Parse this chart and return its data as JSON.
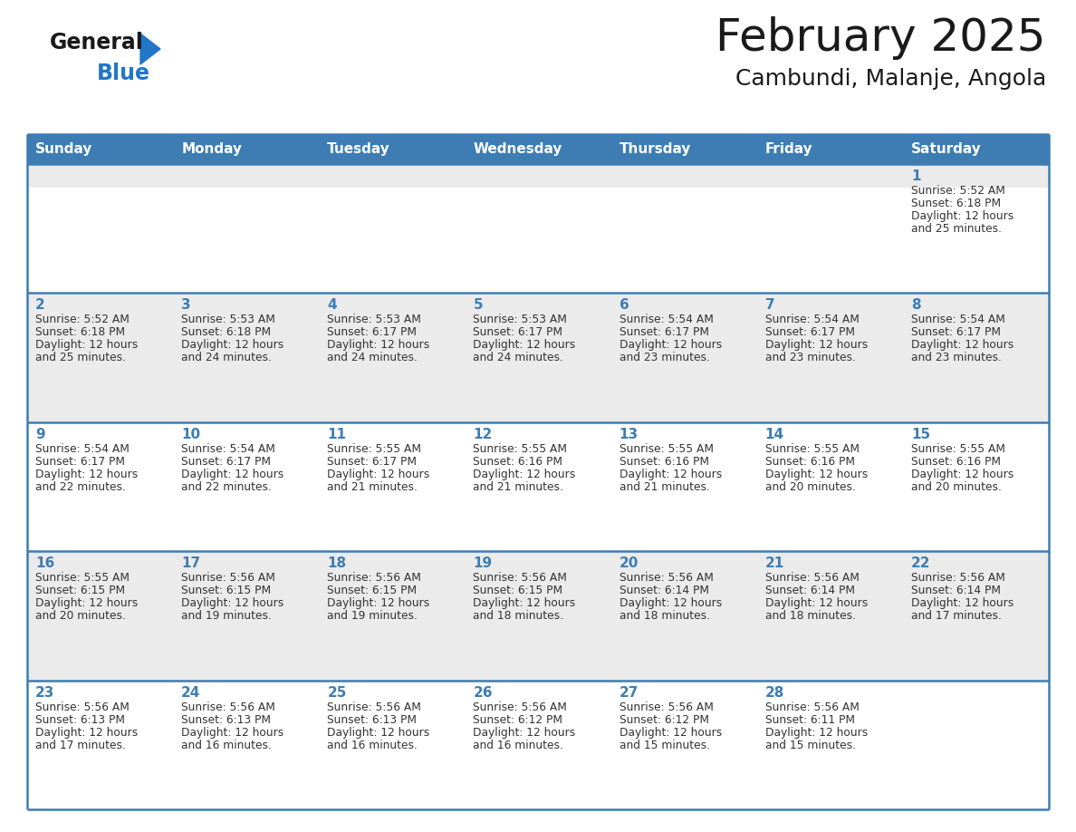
{
  "title": "February 2025",
  "subtitle": "Cambundi, Malanje, Angola",
  "header_bg_color": "#3d7db3",
  "header_text_color": "#ffffff",
  "day_names": [
    "Sunday",
    "Monday",
    "Tuesday",
    "Wednesday",
    "Thursday",
    "Friday",
    "Saturday"
  ],
  "row_bg_gray": "#ebebeb",
  "row_bg_white": "#ffffff",
  "cell_border_color": "#3d7db3",
  "day_number_color": "#3d7db3",
  "info_text_color": "#333333",
  "background_color": "#ffffff",
  "logo_color_general": "#1a1a1a",
  "logo_color_blue": "#2176c7",
  "calendar_data": [
    [
      {
        "day": null,
        "sunrise": null,
        "sunset": null,
        "daylight": null
      },
      {
        "day": null,
        "sunrise": null,
        "sunset": null,
        "daylight": null
      },
      {
        "day": null,
        "sunrise": null,
        "sunset": null,
        "daylight": null
      },
      {
        "day": null,
        "sunrise": null,
        "sunset": null,
        "daylight": null
      },
      {
        "day": null,
        "sunrise": null,
        "sunset": null,
        "daylight": null
      },
      {
        "day": null,
        "sunrise": null,
        "sunset": null,
        "daylight": null
      },
      {
        "day": 1,
        "sunrise": "5:52 AM",
        "sunset": "6:18 PM",
        "daylight": "12 hours and 25 minutes."
      }
    ],
    [
      {
        "day": 2,
        "sunrise": "5:52 AM",
        "sunset": "6:18 PM",
        "daylight": "12 hours and 25 minutes."
      },
      {
        "day": 3,
        "sunrise": "5:53 AM",
        "sunset": "6:18 PM",
        "daylight": "12 hours and 24 minutes."
      },
      {
        "day": 4,
        "sunrise": "5:53 AM",
        "sunset": "6:17 PM",
        "daylight": "12 hours and 24 minutes."
      },
      {
        "day": 5,
        "sunrise": "5:53 AM",
        "sunset": "6:17 PM",
        "daylight": "12 hours and 24 minutes."
      },
      {
        "day": 6,
        "sunrise": "5:54 AM",
        "sunset": "6:17 PM",
        "daylight": "12 hours and 23 minutes."
      },
      {
        "day": 7,
        "sunrise": "5:54 AM",
        "sunset": "6:17 PM",
        "daylight": "12 hours and 23 minutes."
      },
      {
        "day": 8,
        "sunrise": "5:54 AM",
        "sunset": "6:17 PM",
        "daylight": "12 hours and 23 minutes."
      }
    ],
    [
      {
        "day": 9,
        "sunrise": "5:54 AM",
        "sunset": "6:17 PM",
        "daylight": "12 hours and 22 minutes."
      },
      {
        "day": 10,
        "sunrise": "5:54 AM",
        "sunset": "6:17 PM",
        "daylight": "12 hours and 22 minutes."
      },
      {
        "day": 11,
        "sunrise": "5:55 AM",
        "sunset": "6:17 PM",
        "daylight": "12 hours and 21 minutes."
      },
      {
        "day": 12,
        "sunrise": "5:55 AM",
        "sunset": "6:16 PM",
        "daylight": "12 hours and 21 minutes."
      },
      {
        "day": 13,
        "sunrise": "5:55 AM",
        "sunset": "6:16 PM",
        "daylight": "12 hours and 21 minutes."
      },
      {
        "day": 14,
        "sunrise": "5:55 AM",
        "sunset": "6:16 PM",
        "daylight": "12 hours and 20 minutes."
      },
      {
        "day": 15,
        "sunrise": "5:55 AM",
        "sunset": "6:16 PM",
        "daylight": "12 hours and 20 minutes."
      }
    ],
    [
      {
        "day": 16,
        "sunrise": "5:55 AM",
        "sunset": "6:15 PM",
        "daylight": "12 hours and 20 minutes."
      },
      {
        "day": 17,
        "sunrise": "5:56 AM",
        "sunset": "6:15 PM",
        "daylight": "12 hours and 19 minutes."
      },
      {
        "day": 18,
        "sunrise": "5:56 AM",
        "sunset": "6:15 PM",
        "daylight": "12 hours and 19 minutes."
      },
      {
        "day": 19,
        "sunrise": "5:56 AM",
        "sunset": "6:15 PM",
        "daylight": "12 hours and 18 minutes."
      },
      {
        "day": 20,
        "sunrise": "5:56 AM",
        "sunset": "6:14 PM",
        "daylight": "12 hours and 18 minutes."
      },
      {
        "day": 21,
        "sunrise": "5:56 AM",
        "sunset": "6:14 PM",
        "daylight": "12 hours and 18 minutes."
      },
      {
        "day": 22,
        "sunrise": "5:56 AM",
        "sunset": "6:14 PM",
        "daylight": "12 hours and 17 minutes."
      }
    ],
    [
      {
        "day": 23,
        "sunrise": "5:56 AM",
        "sunset": "6:13 PM",
        "daylight": "12 hours and 17 minutes."
      },
      {
        "day": 24,
        "sunrise": "5:56 AM",
        "sunset": "6:13 PM",
        "daylight": "12 hours and 16 minutes."
      },
      {
        "day": 25,
        "sunrise": "5:56 AM",
        "sunset": "6:13 PM",
        "daylight": "12 hours and 16 minutes."
      },
      {
        "day": 26,
        "sunrise": "5:56 AM",
        "sunset": "6:12 PM",
        "daylight": "12 hours and 16 minutes."
      },
      {
        "day": 27,
        "sunrise": "5:56 AM",
        "sunset": "6:12 PM",
        "daylight": "12 hours and 15 minutes."
      },
      {
        "day": 28,
        "sunrise": "5:56 AM",
        "sunset": "6:11 PM",
        "daylight": "12 hours and 15 minutes."
      },
      {
        "day": null,
        "sunrise": null,
        "sunset": null,
        "daylight": null
      }
    ]
  ]
}
